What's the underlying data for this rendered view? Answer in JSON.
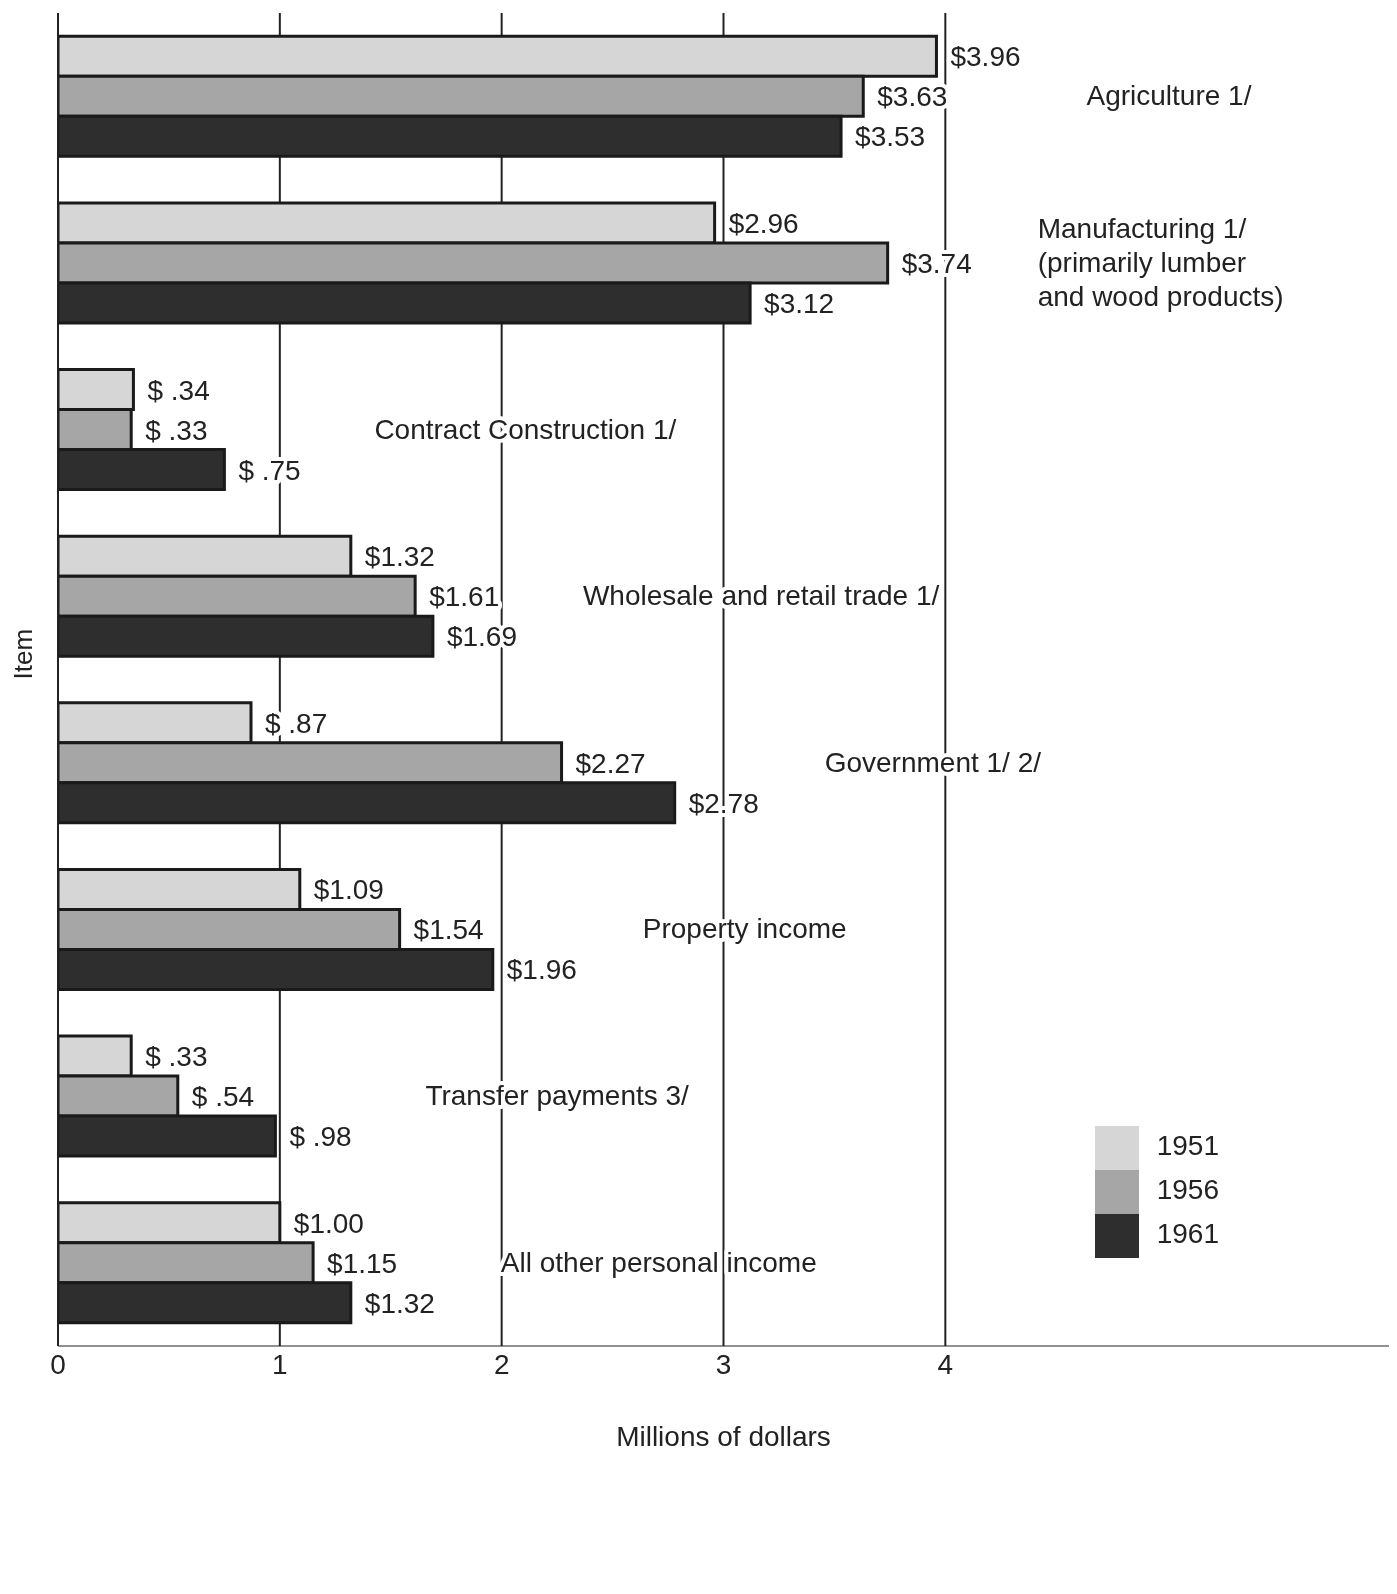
{
  "chart_data": {
    "type": "bar",
    "orientation": "horizontal",
    "xlabel": "Millions of dollars",
    "ylabel": "Item",
    "categories": [
      "Agriculture 1/",
      "Manufacturing 1/\n(primarily lumber\nand wood products)",
      "Contract Construction 1/",
      "Wholesale and retail trade 1/",
      "Government 1/ 2/",
      "Property income",
      "Transfer payments 3/",
      "All other personal income"
    ],
    "series": [
      {
        "name": "1951",
        "color": "#d6d6d6",
        "values": [
          3.96,
          2.96,
          0.34,
          1.32,
          0.87,
          1.09,
          0.33,
          1.0
        ],
        "value_labels": [
          "$3.96",
          "$2.96",
          "$ .34",
          "$1.32",
          "$ .87",
          "$1.09",
          "$ .33",
          "$1.00"
        ]
      },
      {
        "name": "1956",
        "color": "#a6a6a6",
        "values": [
          3.63,
          3.74,
          0.33,
          1.61,
          2.27,
          1.54,
          0.54,
          1.15
        ],
        "value_labels": [
          "$3.63",
          "$3.74",
          "$ .33",
          "$1.61",
          "$2.27",
          "$1.54",
          "$ .54",
          "$1.15"
        ]
      },
      {
        "name": "1961",
        "color": "#2e2e2e",
        "values": [
          3.53,
          3.12,
          0.75,
          1.69,
          2.78,
          1.96,
          0.98,
          1.32
        ],
        "value_labels": [
          "$3.53",
          "$3.12",
          "$ .75",
          "$1.69",
          "$2.78",
          "$1.96",
          "$ .98",
          "$1.32"
        ]
      }
    ],
    "xlim": [
      0,
      6
    ],
    "xticks": [
      0,
      1,
      2,
      3,
      4
    ],
    "grid": "x",
    "legend": "bottom right"
  }
}
